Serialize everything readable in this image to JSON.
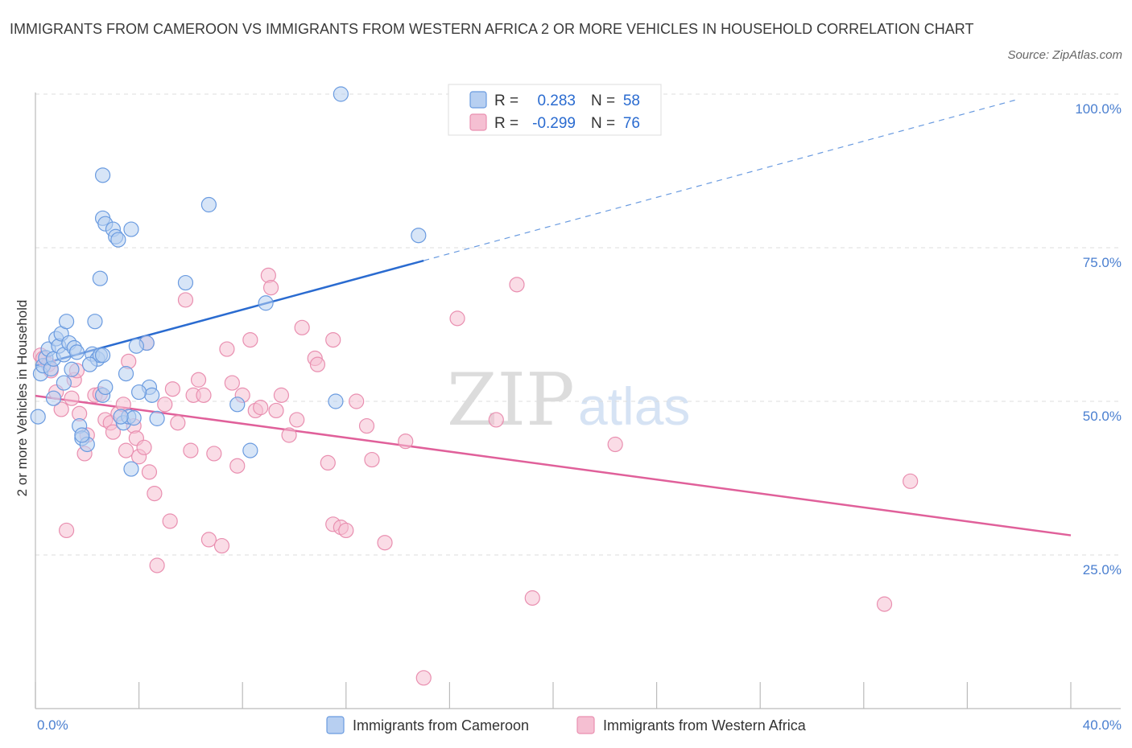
{
  "title": "IMMIGRANTS FROM CAMEROON VS IMMIGRANTS FROM WESTERN AFRICA 2 OR MORE VEHICLES IN HOUSEHOLD CORRELATION CHART",
  "source": "Source: ZipAtlas.com",
  "watermark": {
    "zip": "ZIP",
    "atlas": "atlas"
  },
  "colors": {
    "blue": "#6a9be0",
    "blue_fill": "#b7cff1",
    "pink": "#e98fb0",
    "pink_fill": "#f5bfd2",
    "blue_line": "#2a6bd0",
    "pink_line": "#e0609a"
  },
  "stats": [
    {
      "r_label": "R =",
      "r_value": "0.283",
      "n_label": "N =",
      "n_value": "58"
    },
    {
      "r_label": "R =",
      "r_value": "-0.299",
      "n_label": "N =",
      "n_value": "76"
    }
  ],
  "chart_data": {
    "type": "scatter",
    "title": "IMMIGRANTS FROM CAMEROON VS IMMIGRANTS FROM WESTERN AFRICA 2 OR MORE VEHICLES IN HOUSEHOLD CORRELATION CHART",
    "xlabel": "",
    "ylabel": "2 or more Vehicles in Household",
    "xlim": [
      0,
      40
    ],
    "ylim": [
      0,
      100
    ],
    "x_tick_labels": [
      "0.0%",
      "40.0%"
    ],
    "y_tick_labels": [
      "100.0%",
      "75.0%",
      "50.0%",
      "25.0%"
    ],
    "y_ticks": [
      100,
      75,
      50,
      25
    ],
    "grid": true,
    "legend_position": "bottom",
    "series": [
      {
        "name": "Immigrants from Cameroon",
        "color": "#6a9be0",
        "trend": {
          "x": [
            0,
            15
          ],
          "y": [
            55.8,
            72.9
          ],
          "dashed_to": [
            38,
            99.2
          ]
        },
        "points": [
          [
            0.2,
            54.5
          ],
          [
            0.3,
            55.8
          ],
          [
            0.4,
            57.1
          ],
          [
            0.5,
            58.5
          ],
          [
            0.6,
            55.3
          ],
          [
            0.7,
            56.9
          ],
          [
            0.8,
            60.2
          ],
          [
            0.9,
            59.0
          ],
          [
            1.0,
            61.0
          ],
          [
            1.1,
            53.0
          ],
          [
            1.1,
            57.6
          ],
          [
            1.2,
            63.0
          ],
          [
            1.3,
            59.5
          ],
          [
            1.4,
            55.2
          ],
          [
            1.5,
            58.7
          ],
          [
            1.6,
            58.0
          ],
          [
            1.7,
            46.0
          ],
          [
            1.8,
            44.0
          ],
          [
            2.0,
            43.0
          ],
          [
            2.2,
            57.7
          ],
          [
            2.3,
            63.0
          ],
          [
            2.4,
            56.9
          ],
          [
            2.5,
            57.5
          ],
          [
            2.6,
            79.8
          ],
          [
            2.7,
            78.9
          ],
          [
            2.6,
            86.8
          ],
          [
            2.6,
            57.5
          ],
          [
            2.5,
            70.0
          ],
          [
            2.6,
            51.0
          ],
          [
            2.7,
            52.3
          ],
          [
            3.0,
            78.0
          ],
          [
            3.1,
            76.8
          ],
          [
            3.2,
            76.3
          ],
          [
            3.5,
            54.5
          ],
          [
            3.7,
            78.0
          ],
          [
            3.4,
            46.5
          ],
          [
            3.6,
            47.5
          ],
          [
            3.8,
            47.3
          ],
          [
            3.7,
            39.0
          ],
          [
            4.3,
            59.5
          ],
          [
            4.4,
            52.3
          ],
          [
            4.5,
            51.0
          ],
          [
            4.7,
            47.2
          ],
          [
            5.8,
            69.3
          ],
          [
            6.7,
            82.0
          ],
          [
            7.8,
            49.5
          ],
          [
            8.3,
            42.0
          ],
          [
            8.9,
            66.0
          ],
          [
            11.8,
            100.0
          ],
          [
            11.6,
            50.0
          ],
          [
            14.8,
            77.0
          ],
          [
            0.1,
            47.5
          ],
          [
            4.0,
            51.5
          ],
          [
            3.9,
            59.0
          ],
          [
            2.1,
            56.0
          ],
          [
            0.7,
            50.5
          ],
          [
            1.8,
            44.5
          ],
          [
            3.3,
            47.5
          ]
        ]
      },
      {
        "name": "Immigrants from Western Africa",
        "color": "#e98fb0",
        "trend": {
          "x": [
            0,
            40
          ],
          "y": [
            50.9,
            28.2
          ]
        },
        "points": [
          [
            0.2,
            57.5
          ],
          [
            0.3,
            57.0
          ],
          [
            0.5,
            56.0
          ],
          [
            0.6,
            55.0
          ],
          [
            0.8,
            51.5
          ],
          [
            1.0,
            48.7
          ],
          [
            1.2,
            29.0
          ],
          [
            1.4,
            50.5
          ],
          [
            1.5,
            53.5
          ],
          [
            1.6,
            55.0
          ],
          [
            1.7,
            48.0
          ],
          [
            1.9,
            41.5
          ],
          [
            2.0,
            44.5
          ],
          [
            2.3,
            51.0
          ],
          [
            2.5,
            51.2
          ],
          [
            2.7,
            47.0
          ],
          [
            2.9,
            46.5
          ],
          [
            3.0,
            45.0
          ],
          [
            3.2,
            48.0
          ],
          [
            3.4,
            49.5
          ],
          [
            3.5,
            42.0
          ],
          [
            3.6,
            56.5
          ],
          [
            3.8,
            46.0
          ],
          [
            3.9,
            44.0
          ],
          [
            4.0,
            41.0
          ],
          [
            4.2,
            42.5
          ],
          [
            4.3,
            59.5
          ],
          [
            4.4,
            38.5
          ],
          [
            4.6,
            35.0
          ],
          [
            4.7,
            23.3
          ],
          [
            5.0,
            49.5
          ],
          [
            5.2,
            30.5
          ],
          [
            5.3,
            52.0
          ],
          [
            5.5,
            46.5
          ],
          [
            5.8,
            66.5
          ],
          [
            6.0,
            42.0
          ],
          [
            6.1,
            51.0
          ],
          [
            6.3,
            53.5
          ],
          [
            6.5,
            51.0
          ],
          [
            6.7,
            27.5
          ],
          [
            6.9,
            41.5
          ],
          [
            7.2,
            26.5
          ],
          [
            7.4,
            58.5
          ],
          [
            7.6,
            53.0
          ],
          [
            7.8,
            39.5
          ],
          [
            8.0,
            51.0
          ],
          [
            8.3,
            60.0
          ],
          [
            8.5,
            48.5
          ],
          [
            8.7,
            49.0
          ],
          [
            9.0,
            70.5
          ],
          [
            9.1,
            68.5
          ],
          [
            9.3,
            48.5
          ],
          [
            9.5,
            51.0
          ],
          [
            9.8,
            44.5
          ],
          [
            10.1,
            47.0
          ],
          [
            10.3,
            62.0
          ],
          [
            10.8,
            57.0
          ],
          [
            10.9,
            56.0
          ],
          [
            11.3,
            40.0
          ],
          [
            11.5,
            60.0
          ],
          [
            11.5,
            30.0
          ],
          [
            11.8,
            29.5
          ],
          [
            12.0,
            29.0
          ],
          [
            12.4,
            50.0
          ],
          [
            12.8,
            46.0
          ],
          [
            13.0,
            40.5
          ],
          [
            13.5,
            27.0
          ],
          [
            14.3,
            43.5
          ],
          [
            15.0,
            5.0
          ],
          [
            16.3,
            63.5
          ],
          [
            17.8,
            47.0
          ],
          [
            18.6,
            69.0
          ],
          [
            19.2,
            18.0
          ],
          [
            22.4,
            43.0
          ],
          [
            33.8,
            37.0
          ],
          [
            32.8,
            17.0
          ]
        ]
      }
    ]
  }
}
